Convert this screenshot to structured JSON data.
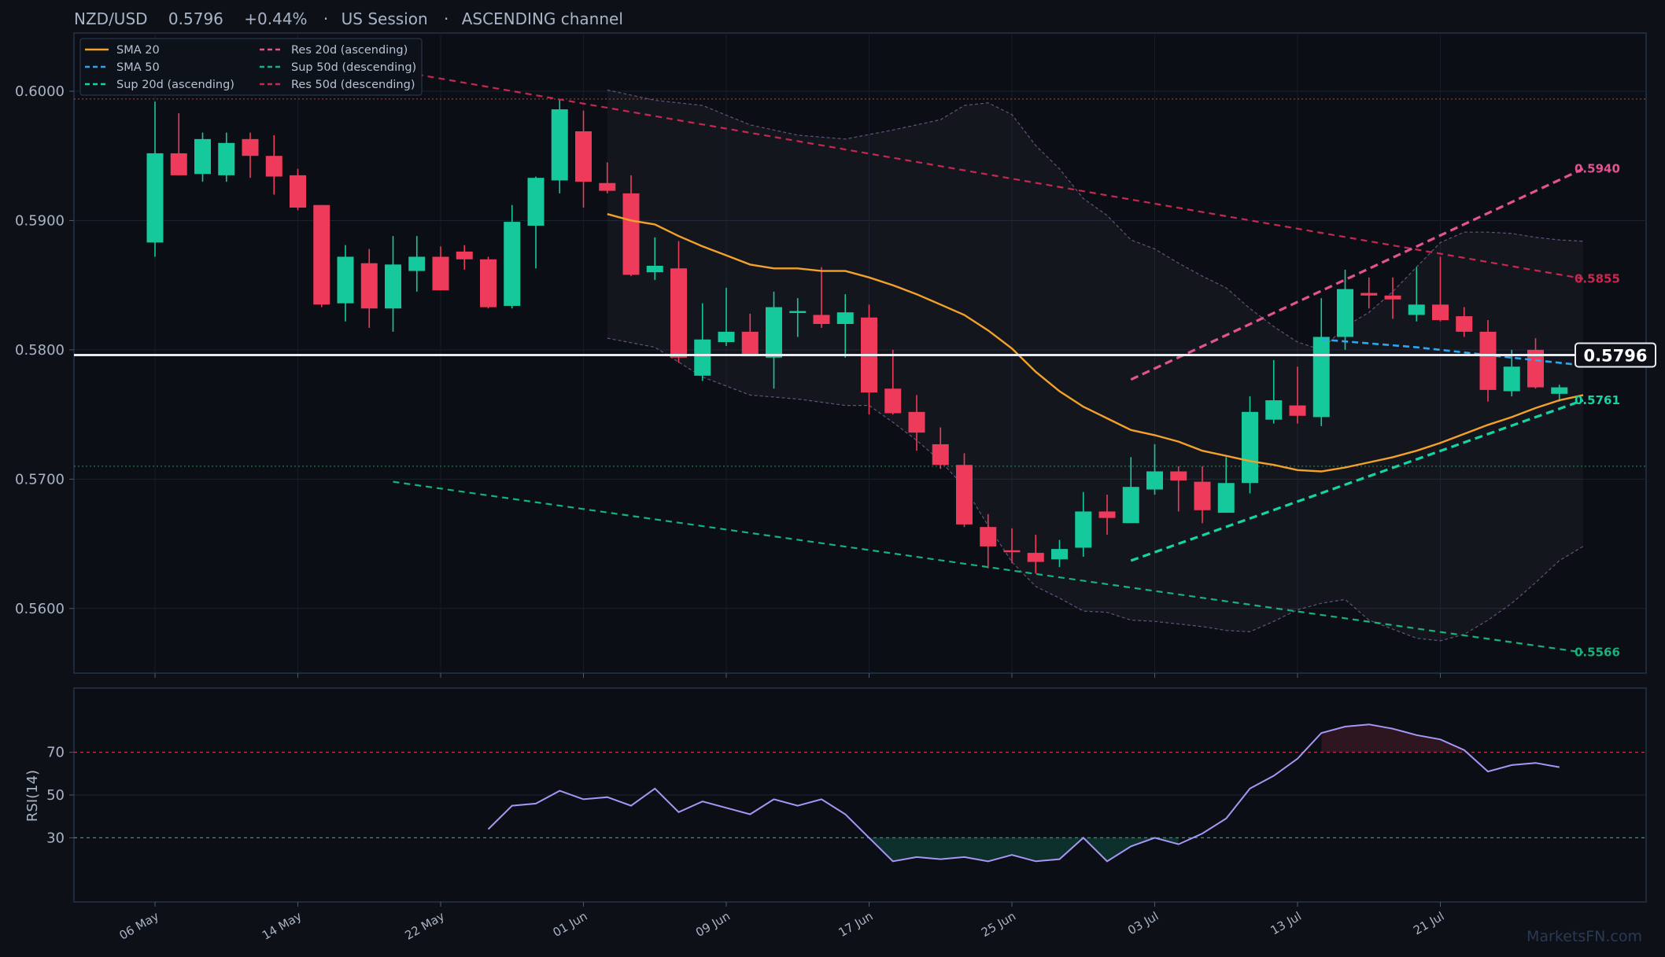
{
  "header": {
    "pair": "NZD/USD",
    "price": "0.5796",
    "change": "+0.44%",
    "session": "US Session",
    "channel": "ASCENDING channel",
    "sep": "·"
  },
  "watermark": "MarketsFN.com",
  "colors": {
    "bg": "#0d1017",
    "up": "#15c99d",
    "down": "#ef3b5b",
    "sma20": "#f2a22b",
    "sma50": "#2aa7f0",
    "res_asc": "#e2538f",
    "sup_asc": "#15d4a3",
    "sup_desc": "#17b27a",
    "res_desc": "#c8284f",
    "rsi": "#a597f5",
    "bb": "#6b5a8a"
  },
  "legend": [
    {
      "label": "SMA 20",
      "color": "#f2a22b",
      "dash": false
    },
    {
      "label": "SMA 50",
      "color": "#2aa7f0",
      "dash": true
    },
    {
      "label": "Sup 20d (ascending)",
      "color": "#15d4a3",
      "dash": true
    },
    {
      "label": "Res 20d (ascending)",
      "color": "#e2538f",
      "dash": true
    },
    {
      "label": "Sup 50d (descending)",
      "color": "#17b27a",
      "dash": true
    },
    {
      "label": "Res 50d (descending)",
      "color": "#c8284f",
      "dash": true
    }
  ],
  "price_labels": {
    "current": "0.5796",
    "res_asc": "0.5940",
    "res_desc": "0.5855",
    "sup_asc": "0.5761",
    "sup_desc": "0.5566"
  },
  "rsi_label": "RSI(14)",
  "chart_data": {
    "type": "candlestick",
    "yticks": [
      0.56,
      0.57,
      0.58,
      0.59,
      0.6
    ],
    "ytick_labels": [
      "0.5600",
      "0.5700",
      "0.5800",
      "0.5900",
      "0.6000"
    ],
    "ylim": [
      0.555,
      0.6045
    ],
    "xtick_labels": [
      {
        "label": "06 May",
        "i": 0
      },
      {
        "label": "14 May",
        "i": 6
      },
      {
        "label": "22 May",
        "i": 12
      },
      {
        "label": "01 Jun",
        "i": 18
      },
      {
        "label": "09 Jun",
        "i": 24
      },
      {
        "label": "17 Jun",
        "i": 30
      },
      {
        "label": "25 Jun",
        "i": 36
      },
      {
        "label": "03 Jul",
        "i": 42
      },
      {
        "label": "13 Jul",
        "i": 48
      },
      {
        "label": "21 Jul",
        "i": 54
      }
    ],
    "candles": [
      {
        "o": 0.5883,
        "h": 0.5992,
        "l": 0.5872,
        "c": 0.5952
      },
      {
        "o": 0.5952,
        "h": 0.5983,
        "l": 0.5935,
        "c": 0.5935
      },
      {
        "o": 0.5936,
        "h": 0.5968,
        "l": 0.593,
        "c": 0.5963
      },
      {
        "o": 0.5935,
        "h": 0.5968,
        "l": 0.593,
        "c": 0.596
      },
      {
        "o": 0.5963,
        "h": 0.5968,
        "l": 0.5933,
        "c": 0.595
      },
      {
        "o": 0.595,
        "h": 0.5966,
        "l": 0.592,
        "c": 0.5934
      },
      {
        "o": 0.5935,
        "h": 0.594,
        "l": 0.5908,
        "c": 0.591
      },
      {
        "o": 0.5912,
        "h": 0.5912,
        "l": 0.5833,
        "c": 0.5835
      },
      {
        "o": 0.5836,
        "h": 0.5881,
        "l": 0.5822,
        "c": 0.5872
      },
      {
        "o": 0.5867,
        "h": 0.5878,
        "l": 0.5817,
        "c": 0.5832
      },
      {
        "o": 0.5832,
        "h": 0.5888,
        "l": 0.5814,
        "c": 0.5866
      },
      {
        "o": 0.5861,
        "h": 0.5888,
        "l": 0.5845,
        "c": 0.5872
      },
      {
        "o": 0.5872,
        "h": 0.588,
        "l": 0.5846,
        "c": 0.5846
      },
      {
        "o": 0.5876,
        "h": 0.5881,
        "l": 0.5862,
        "c": 0.587
      },
      {
        "o": 0.587,
        "h": 0.5872,
        "l": 0.5832,
        "c": 0.5833
      },
      {
        "o": 0.5834,
        "h": 0.5912,
        "l": 0.5832,
        "c": 0.5899
      },
      {
        "o": 0.5896,
        "h": 0.5934,
        "l": 0.5863,
        "c": 0.5933
      },
      {
        "o": 0.5931,
        "h": 0.5993,
        "l": 0.5921,
        "c": 0.5986
      },
      {
        "o": 0.5969,
        "h": 0.5985,
        "l": 0.591,
        "c": 0.593
      },
      {
        "o": 0.5929,
        "h": 0.5945,
        "l": 0.5921,
        "c": 0.5923
      },
      {
        "o": 0.5921,
        "h": 0.5935,
        "l": 0.5857,
        "c": 0.5858
      },
      {
        "o": 0.586,
        "h": 0.5887,
        "l": 0.5854,
        "c": 0.5865
      },
      {
        "o": 0.5863,
        "h": 0.5884,
        "l": 0.579,
        "c": 0.5794
      },
      {
        "o": 0.578,
        "h": 0.5836,
        "l": 0.5776,
        "c": 0.5808
      },
      {
        "o": 0.5806,
        "h": 0.5848,
        "l": 0.5803,
        "c": 0.5814
      },
      {
        "o": 0.5814,
        "h": 0.5828,
        "l": 0.5795,
        "c": 0.5795
      },
      {
        "o": 0.5794,
        "h": 0.5845,
        "l": 0.577,
        "c": 0.5833
      },
      {
        "o": 0.583,
        "h": 0.584,
        "l": 0.581,
        "c": 0.583
      },
      {
        "o": 0.5827,
        "h": 0.5864,
        "l": 0.5817,
        "c": 0.582
      },
      {
        "o": 0.582,
        "h": 0.5843,
        "l": 0.5794,
        "c": 0.5829
      },
      {
        "o": 0.5825,
        "h": 0.5835,
        "l": 0.575,
        "c": 0.5767
      },
      {
        "o": 0.577,
        "h": 0.58,
        "l": 0.575,
        "c": 0.5751
      },
      {
        "o": 0.5752,
        "h": 0.5765,
        "l": 0.5722,
        "c": 0.5736
      },
      {
        "o": 0.5727,
        "h": 0.574,
        "l": 0.5708,
        "c": 0.5711
      },
      {
        "o": 0.5711,
        "h": 0.572,
        "l": 0.5663,
        "c": 0.5665
      },
      {
        "o": 0.5663,
        "h": 0.5673,
        "l": 0.5631,
        "c": 0.5648
      },
      {
        "o": 0.5645,
        "h": 0.5662,
        "l": 0.5635,
        "c": 0.5644
      },
      {
        "o": 0.5643,
        "h": 0.5657,
        "l": 0.5627,
        "c": 0.5636
      },
      {
        "o": 0.5638,
        "h": 0.5653,
        "l": 0.5632,
        "c": 0.5646
      },
      {
        "o": 0.5647,
        "h": 0.569,
        "l": 0.564,
        "c": 0.5675
      },
      {
        "o": 0.5675,
        "h": 0.5688,
        "l": 0.5657,
        "c": 0.567
      },
      {
        "o": 0.5666,
        "h": 0.5717,
        "l": 0.5666,
        "c": 0.5694
      },
      {
        "o": 0.5692,
        "h": 0.5727,
        "l": 0.5688,
        "c": 0.5706
      },
      {
        "o": 0.5706,
        "h": 0.571,
        "l": 0.5675,
        "c": 0.5699
      },
      {
        "o": 0.5698,
        "h": 0.571,
        "l": 0.5666,
        "c": 0.5676
      },
      {
        "o": 0.5674,
        "h": 0.5717,
        "l": 0.5674,
        "c": 0.5697
      },
      {
        "o": 0.5697,
        "h": 0.5764,
        "l": 0.5689,
        "c": 0.5752
      },
      {
        "o": 0.5746,
        "h": 0.5792,
        "l": 0.5743,
        "c": 0.5761
      },
      {
        "o": 0.5757,
        "h": 0.5787,
        "l": 0.5743,
        "c": 0.5749
      },
      {
        "o": 0.5748,
        "h": 0.584,
        "l": 0.5741,
        "c": 0.581
      },
      {
        "o": 0.581,
        "h": 0.5862,
        "l": 0.58,
        "c": 0.5847
      },
      {
        "o": 0.5844,
        "h": 0.5856,
        "l": 0.5832,
        "c": 0.5842
      },
      {
        "o": 0.5842,
        "h": 0.5856,
        "l": 0.5824,
        "c": 0.5839
      },
      {
        "o": 0.5827,
        "h": 0.5864,
        "l": 0.5822,
        "c": 0.5835
      },
      {
        "o": 0.5835,
        "h": 0.5872,
        "l": 0.5822,
        "c": 0.5823
      },
      {
        "o": 0.5826,
        "h": 0.5833,
        "l": 0.581,
        "c": 0.5814
      },
      {
        "o": 0.5814,
        "h": 0.5823,
        "l": 0.576,
        "c": 0.5769
      },
      {
        "o": 0.5768,
        "h": 0.58,
        "l": 0.5764,
        "c": 0.5787
      },
      {
        "o": 0.58,
        "h": 0.5809,
        "l": 0.577,
        "c": 0.5771
      },
      {
        "o": 0.5766,
        "h": 0.5773,
        "l": 0.576,
        "c": 0.5771
      }
    ],
    "sma20": [
      [
        19,
        0.5905
      ],
      [
        20,
        0.59
      ],
      [
        21,
        0.5897
      ],
      [
        22,
        0.5888
      ],
      [
        23,
        0.588
      ],
      [
        24,
        0.5873
      ],
      [
        25,
        0.5866
      ],
      [
        26,
        0.5863
      ],
      [
        27,
        0.5863
      ],
      [
        28,
        0.5861
      ],
      [
        29,
        0.5861
      ],
      [
        30,
        0.5856
      ],
      [
        31,
        0.585
      ],
      [
        32,
        0.5843
      ],
      [
        33,
        0.5835
      ],
      [
        34,
        0.5827
      ],
      [
        35,
        0.5815
      ],
      [
        36,
        0.5801
      ],
      [
        37,
        0.5783
      ],
      [
        38,
        0.5768
      ],
      [
        39,
        0.5756
      ],
      [
        40,
        0.5747
      ],
      [
        41,
        0.5738
      ],
      [
        42,
        0.5734
      ],
      [
        43,
        0.5729
      ],
      [
        44,
        0.5722
      ],
      [
        45,
        0.5718
      ],
      [
        46,
        0.5714
      ],
      [
        47,
        0.5711
      ],
      [
        48,
        0.5707
      ],
      [
        49,
        0.5706
      ],
      [
        50,
        0.5709
      ],
      [
        51,
        0.5713
      ],
      [
        52,
        0.5717
      ],
      [
        53,
        0.5722
      ],
      [
        54,
        0.5728
      ],
      [
        55,
        0.5735
      ],
      [
        56,
        0.5742
      ],
      [
        57,
        0.5748
      ],
      [
        58,
        0.5755
      ],
      [
        59,
        0.5761
      ],
      [
        60,
        0.5765
      ]
    ],
    "sma50": [
      [
        49,
        0.5808
      ],
      [
        53,
        0.5802
      ],
      [
        57,
        0.5794
      ],
      [
        60,
        0.5788
      ]
    ],
    "bollinger_upper": [
      [
        19,
        0.6001
      ],
      [
        21,
        0.5993
      ],
      [
        23,
        0.5989
      ],
      [
        25,
        0.5974
      ],
      [
        27,
        0.5966
      ],
      [
        29,
        0.5963
      ],
      [
        31,
        0.597
      ],
      [
        33,
        0.5978
      ],
      [
        34,
        0.5989
      ],
      [
        35,
        0.5991
      ],
      [
        36,
        0.5982
      ],
      [
        37,
        0.5958
      ],
      [
        38,
        0.594
      ],
      [
        39,
        0.5917
      ],
      [
        40,
        0.5904
      ],
      [
        41,
        0.5885
      ],
      [
        42,
        0.5878
      ],
      [
        43,
        0.5867
      ],
      [
        44,
        0.5857
      ],
      [
        45,
        0.5848
      ],
      [
        46,
        0.5832
      ],
      [
        47,
        0.5818
      ],
      [
        48,
        0.5806
      ],
      [
        49,
        0.58
      ],
      [
        50,
        0.5818
      ],
      [
        51,
        0.5829
      ],
      [
        52,
        0.5845
      ],
      [
        53,
        0.5864
      ],
      [
        54,
        0.5883
      ],
      [
        55,
        0.5891
      ],
      [
        56,
        0.5891
      ],
      [
        57,
        0.589
      ],
      [
        58,
        0.5887
      ],
      [
        59,
        0.5885
      ],
      [
        60,
        0.5884
      ]
    ],
    "bollinger_lower": [
      [
        19,
        0.5809
      ],
      [
        21,
        0.5802
      ],
      [
        23,
        0.5779
      ],
      [
        25,
        0.5765
      ],
      [
        27,
        0.5762
      ],
      [
        29,
        0.5757
      ],
      [
        30,
        0.5757
      ],
      [
        31,
        0.5744
      ],
      [
        32,
        0.573
      ],
      [
        33,
        0.5714
      ],
      [
        34,
        0.5694
      ],
      [
        35,
        0.5664
      ],
      [
        36,
        0.5636
      ],
      [
        37,
        0.5617
      ],
      [
        38,
        0.5608
      ],
      [
        39,
        0.5598
      ],
      [
        40,
        0.5597
      ],
      [
        41,
        0.5591
      ],
      [
        42,
        0.559
      ],
      [
        43,
        0.5588
      ],
      [
        44,
        0.5586
      ],
      [
        45,
        0.5583
      ],
      [
        46,
        0.5582
      ],
      [
        47,
        0.559
      ],
      [
        48,
        0.5599
      ],
      [
        49,
        0.5604
      ],
      [
        50,
        0.5607
      ],
      [
        51,
        0.5591
      ],
      [
        52,
        0.5584
      ],
      [
        53,
        0.5577
      ],
      [
        54,
        0.5575
      ],
      [
        55,
        0.558
      ],
      [
        56,
        0.5591
      ],
      [
        57,
        0.5604
      ],
      [
        58,
        0.562
      ],
      [
        59,
        0.5637
      ],
      [
        60,
        0.5648
      ]
    ],
    "trendlines": {
      "res_20d_ascending": [
        [
          41,
          0.5777
        ],
        [
          60,
          0.594
        ]
      ],
      "sup_20d_ascending": [
        [
          41,
          0.5637
        ],
        [
          60,
          0.5761
        ]
      ],
      "res_50d_descending": [
        [
          11,
          0.6013
        ],
        [
          60,
          0.5855
        ]
      ],
      "sup_50d_descending": [
        [
          10,
          0.5698
        ],
        [
          60,
          0.5566
        ]
      ]
    },
    "hlines": {
      "current": 0.5796,
      "upper_dotted": 0.5994,
      "lower_dotted": 0.571
    },
    "rsi": {
      "ylim": [
        0,
        100
      ],
      "yticks": [
        30,
        50,
        70
      ],
      "overbought": 70,
      "oversold": 30,
      "start_index": 14,
      "values": [
        34,
        45,
        46,
        52,
        48,
        49,
        45,
        53,
        42,
        47,
        44,
        41,
        48,
        45,
        48,
        41,
        30,
        19,
        21,
        20,
        21,
        19,
        22,
        19,
        20,
        30,
        19,
        26,
        30,
        27,
        32,
        39,
        53,
        59,
        67,
        79,
        82,
        83,
        81,
        78,
        76,
        71,
        61,
        64,
        65,
        63
      ]
    }
  }
}
